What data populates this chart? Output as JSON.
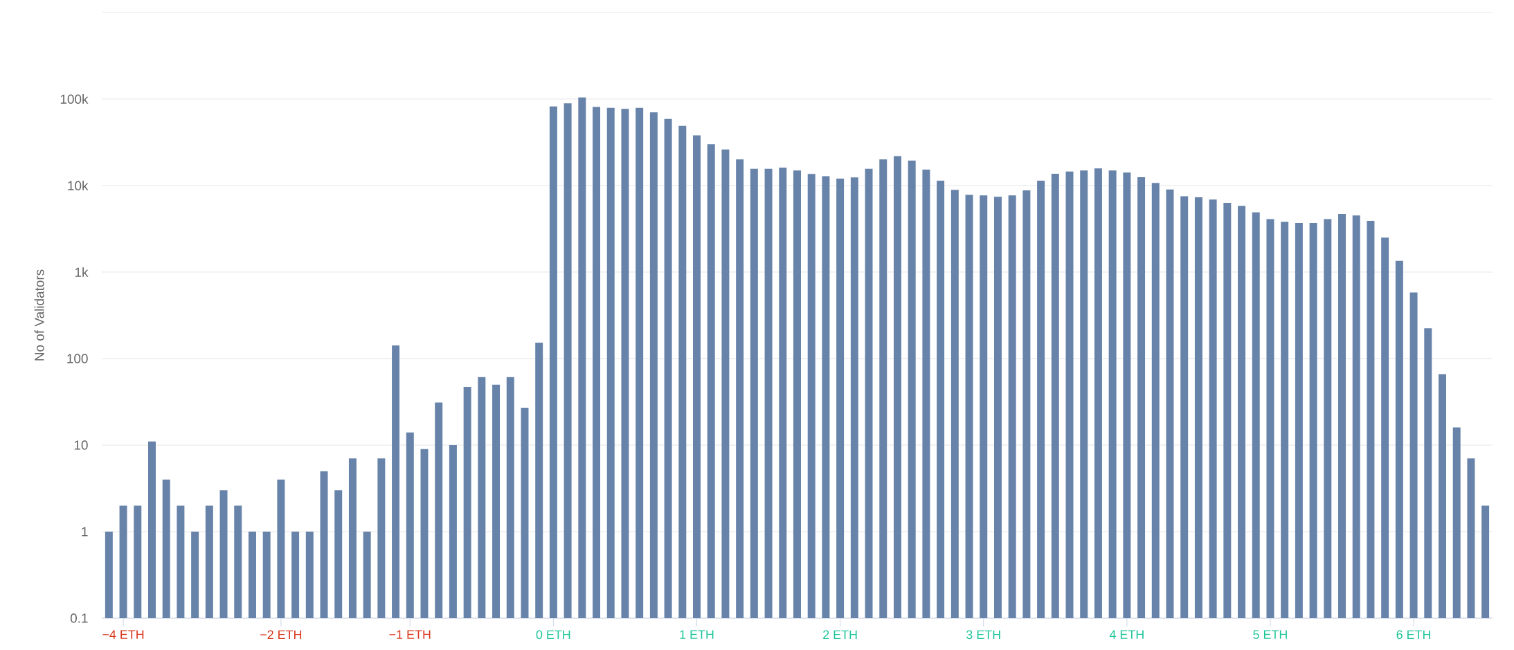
{
  "chart_data": {
    "type": "bar",
    "ylabel": "No of Validators",
    "categories": [
      null,
      "−4 ETH",
      null,
      null,
      null,
      null,
      null,
      null,
      null,
      null,
      null,
      null,
      "−2 ETH",
      null,
      null,
      null,
      null,
      null,
      null,
      null,
      null,
      "−1 ETH",
      null,
      null,
      null,
      null,
      null,
      null,
      null,
      null,
      null,
      "0 ETH",
      null,
      null,
      null,
      null,
      null,
      null,
      null,
      null,
      null,
      "1 ETH",
      null,
      null,
      null,
      null,
      null,
      null,
      null,
      null,
      null,
      "2 ETH",
      null,
      null,
      null,
      null,
      null,
      null,
      null,
      null,
      null,
      "3 ETH",
      null,
      null,
      null,
      null,
      null,
      null,
      null,
      null,
      null,
      "4 ETH",
      null,
      null,
      null,
      null,
      null,
      null,
      null,
      null,
      null,
      "5 ETH",
      null,
      null,
      null,
      null,
      null,
      null,
      null,
      null,
      null,
      "6 ETH",
      null,
      null,
      null,
      null,
      null
    ],
    "values": [
      1,
      2,
      2,
      11,
      4,
      2,
      1,
      2,
      3,
      2,
      1,
      1,
      4,
      1,
      1,
      5,
      3,
      7,
      1,
      7,
      142,
      14,
      9,
      31,
      10,
      47,
      61,
      50,
      61,
      27,
      153,
      82000,
      89000,
      104000,
      81000,
      79000,
      77000,
      79000,
      70000,
      59000,
      49000,
      38000,
      30000,
      26000,
      20000,
      15600,
      15600,
      16100,
      14900,
      13600,
      12800,
      12000,
      12400,
      15600,
      20000,
      21900,
      19400,
      15300,
      11400,
      8900,
      7800,
      7700,
      7400,
      7700,
      8800,
      11400,
      13700,
      14500,
      14900,
      15800,
      14900,
      14100,
      12500,
      10700,
      9000,
      7500,
      7300,
      6900,
      6300,
      5800,
      4900,
      4100,
      3800,
      3700,
      3700,
      4100,
      4700,
      4500,
      3900,
      2500,
      1350,
      580,
      224,
      66,
      16,
      7,
      2
    ],
    "color": "#6783aa",
    "ylim": [
      0.1,
      1000000
    ],
    "yticks": [
      0.1,
      1,
      10,
      100,
      {
        "value": 1000,
        "label": "1k"
      },
      {
        "value": 10000,
        "label": "10k"
      },
      {
        "value": 100000,
        "label": "100k"
      },
      {
        "value": 1000000,
        "label": null
      }
    ],
    "log": "y",
    "grid": "y"
  }
}
